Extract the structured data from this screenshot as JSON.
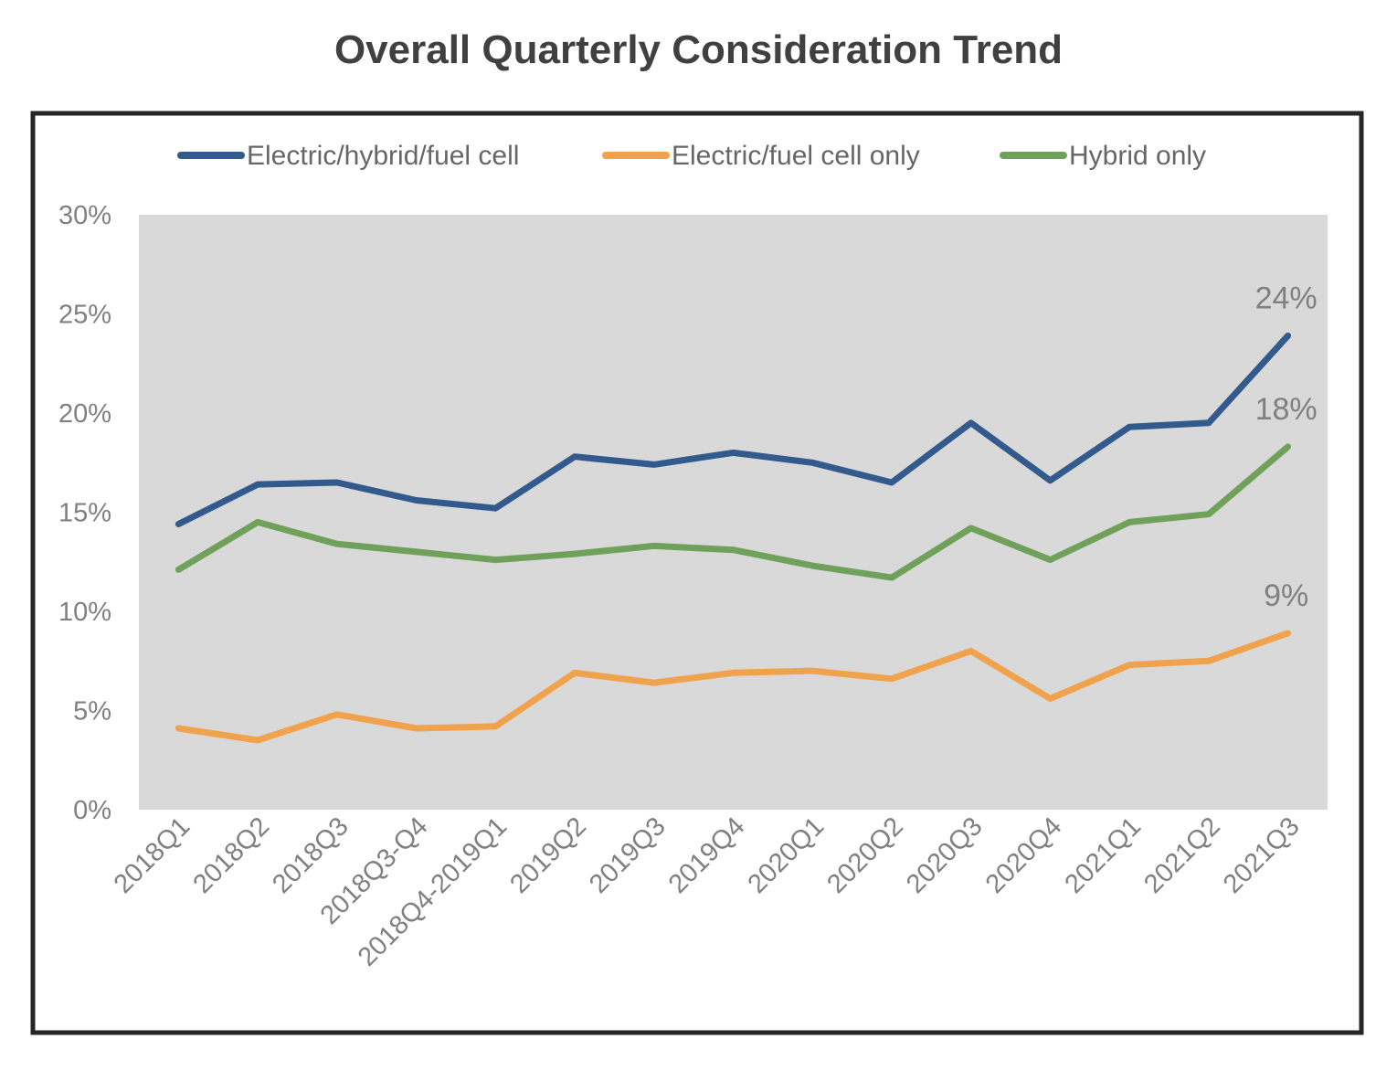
{
  "chart_data": {
    "type": "line",
    "title": "Overall Quarterly Consideration Trend",
    "xlabel": "",
    "ylabel": "",
    "ylim": [
      0,
      30
    ],
    "y_ticks": [
      "0%",
      "5%",
      "10%",
      "15%",
      "20%",
      "25%",
      "30%"
    ],
    "y_tick_values": [
      0,
      5,
      10,
      15,
      20,
      25,
      30
    ],
    "categories": [
      "2018Q1",
      "2018Q2",
      "2018Q3",
      "2018Q3-Q4",
      "2018Q4-2019Q1",
      "2019Q2",
      "2019Q3",
      "2019Q4",
      "2020Q1",
      "2020Q2",
      "2020Q3",
      "2020Q4",
      "2021Q1",
      "2021Q2",
      "2021Q3"
    ],
    "grid": false,
    "legend_position": "top",
    "plot_background": "#d9d9d9",
    "series": [
      {
        "name": "Electric/hybrid/fuel cell",
        "color": "#335a8c",
        "values": [
          14.4,
          16.4,
          16.5,
          15.6,
          15.2,
          17.8,
          17.4,
          18.0,
          17.5,
          16.5,
          19.5,
          16.6,
          19.3,
          19.5,
          23.9
        ],
        "end_label": "24%"
      },
      {
        "name": "Electric/fuel cell only",
        "color": "#f0a24c",
        "values": [
          4.1,
          3.5,
          4.8,
          4.1,
          4.2,
          6.9,
          6.4,
          6.9,
          7.0,
          6.6,
          8.0,
          5.6,
          7.3,
          7.5,
          8.9
        ],
        "end_label": "9%"
      },
      {
        "name": "Hybrid only",
        "color": "#6fa15a",
        "values": [
          12.1,
          14.5,
          13.4,
          13.0,
          12.6,
          12.9,
          13.3,
          13.1,
          12.3,
          11.7,
          14.2,
          12.6,
          14.5,
          14.9,
          18.3
        ],
        "end_label": "18%"
      }
    ]
  }
}
